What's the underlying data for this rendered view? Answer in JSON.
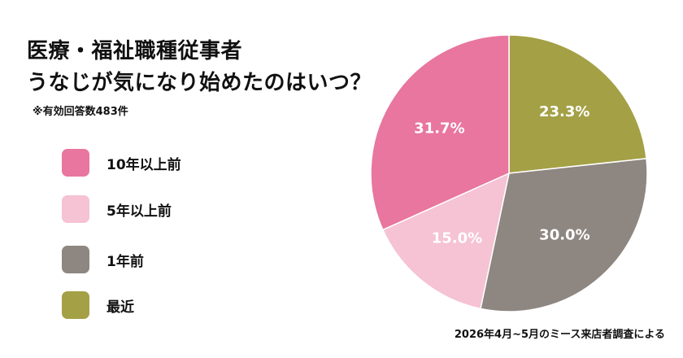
{
  "title_lines": [
    "医療・福祉職種従事者",
    "うなじが気になり始めたのはいつ？"
  ],
  "note": "※有効回答数483件",
  "source": "2026年4月~5月のミース来店者調査による",
  "chart_data": {
    "type": "pie",
    "title": "医療・福祉職種従事者 うなじが気になり始めたのはいつ？",
    "start_angle_deg": 0,
    "direction": "clockwise",
    "legend_position": "left",
    "slices": [
      {
        "label": "最近",
        "value": 23.3,
        "display": "23.3%",
        "color": "#a4a046"
      },
      {
        "label": "1年前",
        "value": 30.0,
        "display": "30.0%",
        "color": "#8e8680"
      },
      {
        "label": "5年以上前",
        "value": 15.0,
        "display": "15.0%",
        "color": "#f5c3d3"
      },
      {
        "label": "10年以上前",
        "value": 31.7,
        "display": "31.7%",
        "color": "#e8769e"
      }
    ],
    "legend": [
      {
        "label": "10年以上前",
        "color": "#e8769e"
      },
      {
        "label": "5年以上前",
        "color": "#f5c3d3"
      },
      {
        "label": "1年前",
        "color": "#8e8680"
      },
      {
        "label": "最近",
        "color": "#a4a046"
      }
    ]
  }
}
